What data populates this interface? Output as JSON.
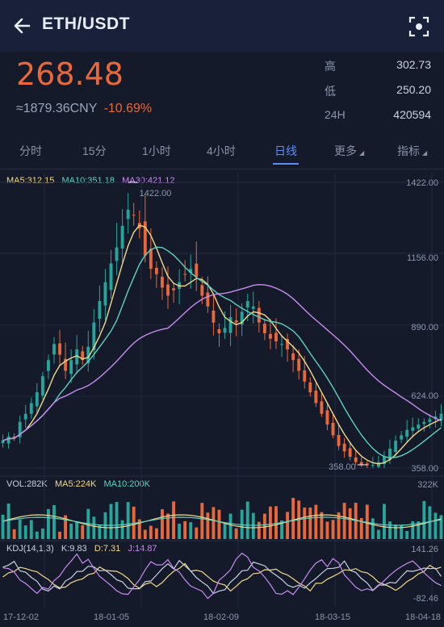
{
  "header": {
    "title": "ETH/USDT",
    "back_icon": "arrow-left-icon",
    "scan_icon": "scan-icon"
  },
  "price": {
    "last": "268.48",
    "cny": "≈1879.36CNY",
    "change": "-10.69%"
  },
  "stats": [
    {
      "label": "高",
      "value": "302.73"
    },
    {
      "label": "低",
      "value": "250.20"
    },
    {
      "label": "24H",
      "value": "420594"
    }
  ],
  "tabs": [
    {
      "label": "分时"
    },
    {
      "label": "15分"
    },
    {
      "label": "1小时"
    },
    {
      "label": "4小时"
    },
    {
      "label": "日线",
      "active": true
    },
    {
      "label": "更多"
    },
    {
      "label": "指标"
    }
  ],
  "colors": {
    "up": "#26a69a",
    "down": "#e8683c",
    "ma5": "#f3d98a",
    "ma10": "#5fd1c0",
    "ma30": "#c98bef",
    "accent": "#5e8df7",
    "bg": "#141a2a"
  },
  "legends": {
    "main": {
      "ma5": "MA5:312.15",
      "ma10": "MA10:351.18",
      "ma30": "MA30:421.12"
    },
    "vol": {
      "vol": "VOL:282K",
      "ma5": "MA5:224K",
      "ma10": "MA10:200K"
    },
    "kdj": {
      "name": "KDJ(14,1,3)",
      "k": "K:9.83",
      "d": "D:7.31",
      "j": "J:14.87"
    }
  },
  "chart_data": [
    {
      "type": "candlestick",
      "y_ticks": [
        "1422.00",
        "1156.00",
        "890.00",
        "624.00",
        "358.00"
      ],
      "ylim": [
        358,
        1422
      ],
      "x_ticks": [
        "17-12-02",
        "18-01-05",
        "18-02-09",
        "18-03-15",
        "18-04-18"
      ],
      "annotations": {
        "high": "1422.00",
        "low": "358.00"
      },
      "series_close": [
        460,
        475,
        470,
        530,
        560,
        600,
        640,
        700,
        760,
        820,
        780,
        720,
        760,
        800,
        760,
        810,
        900,
        980,
        1050,
        1120,
        1180,
        1260,
        1320,
        1300,
        1250,
        1150,
        1100,
        1080,
        1030,
        1000,
        1020,
        1050,
        1080,
        1100,
        1070,
        1000,
        960,
        900,
        860,
        880,
        920,
        900,
        940,
        980,
        960,
        900,
        860,
        840,
        830,
        820,
        800,
        760,
        720,
        680,
        640,
        600,
        560,
        520,
        480,
        440,
        420,
        400,
        380,
        370,
        368,
        370,
        380,
        400,
        430,
        460,
        480,
        500,
        510,
        520,
        530,
        540,
        550,
        560
      ]
    },
    {
      "type": "bar",
      "name": "volume",
      "y_ticks": [
        "322K"
      ]
    },
    {
      "type": "line",
      "name": "KDJ",
      "y_ticks": [
        "141.26",
        "-82.46"
      ]
    }
  ]
}
